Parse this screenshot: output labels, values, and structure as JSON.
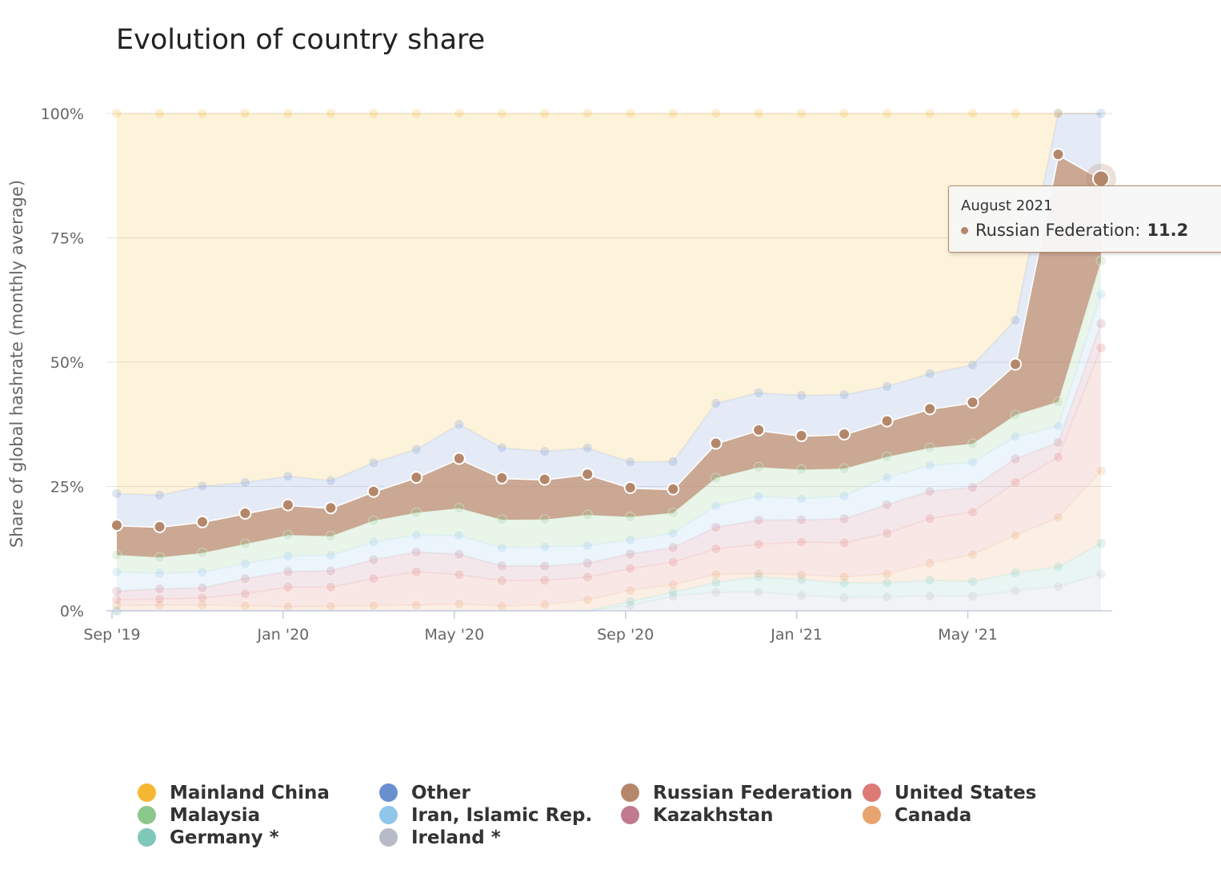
{
  "chart_data": {
    "type": "area",
    "stacking": "percent",
    "title": "Evolution of country share",
    "ylabel": "Share of global hashrate (monthly average)",
    "xlabel": "",
    "ylim": [
      0,
      100
    ],
    "yticks": [
      "0%",
      "25%",
      "50%",
      "75%",
      "100%"
    ],
    "x_tick_labels": [
      "Sep '19",
      "Jan '20",
      "May '20",
      "Sep '20",
      "Jan '21",
      "May '21"
    ],
    "x": [
      "2019-09",
      "2019-10",
      "2019-11",
      "2019-12",
      "2020-01",
      "2020-02",
      "2020-03",
      "2020-04",
      "2020-05",
      "2020-06",
      "2020-07",
      "2020-08",
      "2020-09",
      "2020-10",
      "2020-11",
      "2020-12",
      "2021-01",
      "2021-02",
      "2021-03",
      "2021-04",
      "2021-05",
      "2021-06",
      "2021-07",
      "2021-08"
    ],
    "series": [
      {
        "name": "Ireland *",
        "color": "#b7bac7",
        "values": [
          0,
          0,
          0,
          0,
          0,
          0,
          0,
          0,
          0,
          0,
          0,
          0,
          1.0,
          2.8,
          3.5,
          3.6,
          2.9,
          2.4,
          2.5,
          2.6,
          2.5,
          3.3,
          5.5,
          5.0
        ]
      },
      {
        "name": "Germany *",
        "color": "#7fc7b9",
        "values": [
          0,
          0,
          0,
          0,
          0,
          0,
          0,
          0,
          0,
          0,
          0,
          0,
          0.8,
          0.8,
          1.9,
          2.9,
          3.0,
          2.7,
          2.5,
          2.8,
          2.6,
          3.0,
          4.4,
          4.2
        ]
      },
      {
        "name": "Canada",
        "color": "#e8a46e",
        "values": [
          1.1,
          1.1,
          1.1,
          1.0,
          0.8,
          0.9,
          1.0,
          1.1,
          1.3,
          0.9,
          1.2,
          2.2,
          2.1,
          1.5,
          1.5,
          0.6,
          0.9,
          1.1,
          1.6,
          3.0,
          4.7,
          6.2,
          11.1,
          9.9
        ]
      },
      {
        "name": "United States",
        "color": "#dd7a76",
        "values": [
          1.1,
          1.2,
          1.4,
          2.4,
          3.9,
          3.8,
          5.2,
          6.4,
          5.6,
          4.9,
          4.8,
          4.5,
          4.2,
          4.3,
          4.9,
          5.6,
          6.2,
          6.2,
          7.3,
          7.9,
          7.4,
          8.8,
          13.6,
          16.8
        ]
      },
      {
        "name": "Kazakhstan",
        "color": "#c07b8e",
        "values": [
          1.7,
          2.0,
          1.9,
          3.0,
          3.1,
          3.2,
          3.6,
          3.8,
          3.9,
          2.8,
          2.8,
          2.8,
          2.8,
          2.8,
          4.1,
          4.6,
          4.2,
          4.4,
          5.1,
          4.8,
          4.3,
          3.9,
          3.3,
          3.3
        ]
      },
      {
        "name": "Iran, Islamic Rep.",
        "color": "#8fc6ea",
        "values": [
          3.8,
          3.1,
          3.1,
          3.0,
          3.1,
          3.1,
          3.4,
          3.3,
          3.6,
          3.5,
          3.8,
          3.5,
          2.7,
          2.8,
          4.1,
          4.6,
          4.0,
          4.2,
          4.9,
          4.6,
          4.4,
          3.7,
          3.7,
          4.0
        ]
      },
      {
        "name": "Malaysia",
        "color": "#8cc78c",
        "values": [
          3.4,
          3.1,
          3.7,
          3.9,
          4.2,
          3.8,
          4.1,
          4.3,
          5.2,
          5.4,
          5.4,
          6.1,
          4.4,
          3.9,
          5.3,
          5.5,
          5.5,
          5.0,
          3.7,
          3.1,
          3.2,
          3.6,
          5.5,
          4.6
        ]
      },
      {
        "name": "Russian Federation",
        "color": "#b5876a",
        "values": [
          5.9,
          6.0,
          6.0,
          6.1,
          6.0,
          5.6,
          5.6,
          6.8,
          9.5,
          8.0,
          7.9,
          8.1,
          5.6,
          4.6,
          6.6,
          7.1,
          6.4,
          6.3,
          6.4,
          6.9,
          7.2,
          8.4,
          55.7,
          11.2
        ]
      },
      {
        "name": "Other",
        "color": "#6a8fcf",
        "values": [
          6.3,
          6.2,
          6.9,
          6.1,
          5.7,
          5.4,
          5.5,
          5.4,
          6.5,
          5.8,
          5.5,
          5.2,
          4.9,
          5.3,
          7.6,
          7.1,
          7.6,
          7.2,
          6.2,
          6.2,
          6.5,
          7.3,
          9.2,
          8.9
        ]
      },
      {
        "name": "Mainland China",
        "color": "#f5b731",
        "values": [
          75.5,
          74.9,
          72.1,
          73.4,
          72.3,
          72.8,
          67.0,
          64.7,
          59.4,
          64.2,
          66.6,
          66.6,
          66.8,
          67.2,
          55.2,
          53.3,
          53.3,
          51.4,
          48.9,
          46.0,
          43.8,
          34.3,
          0,
          0
        ]
      }
    ],
    "legend_position": "bottom",
    "grid": true,
    "tooltip": {
      "month": "August 2021",
      "series": "Russian Federation",
      "value": "11.2"
    }
  },
  "legend": [
    {
      "label": "Mainland China",
      "color": "#f5b731"
    },
    {
      "label": "Other",
      "color": "#6a8fcf"
    },
    {
      "label": "Russian Federation",
      "color": "#b5876a"
    },
    {
      "label": "United States",
      "color": "#dd7a76"
    },
    {
      "label": "Malaysia",
      "color": "#8cc78c"
    },
    {
      "label": "Iran, Islamic Rep.",
      "color": "#8fc6ea"
    },
    {
      "label": "Kazakhstan",
      "color": "#c07b8e"
    },
    {
      "label": "Canada",
      "color": "#e8a46e"
    },
    {
      "label": "Germany *",
      "color": "#7fc7b9"
    },
    {
      "label": "Ireland *",
      "color": "#b7bac7"
    }
  ]
}
